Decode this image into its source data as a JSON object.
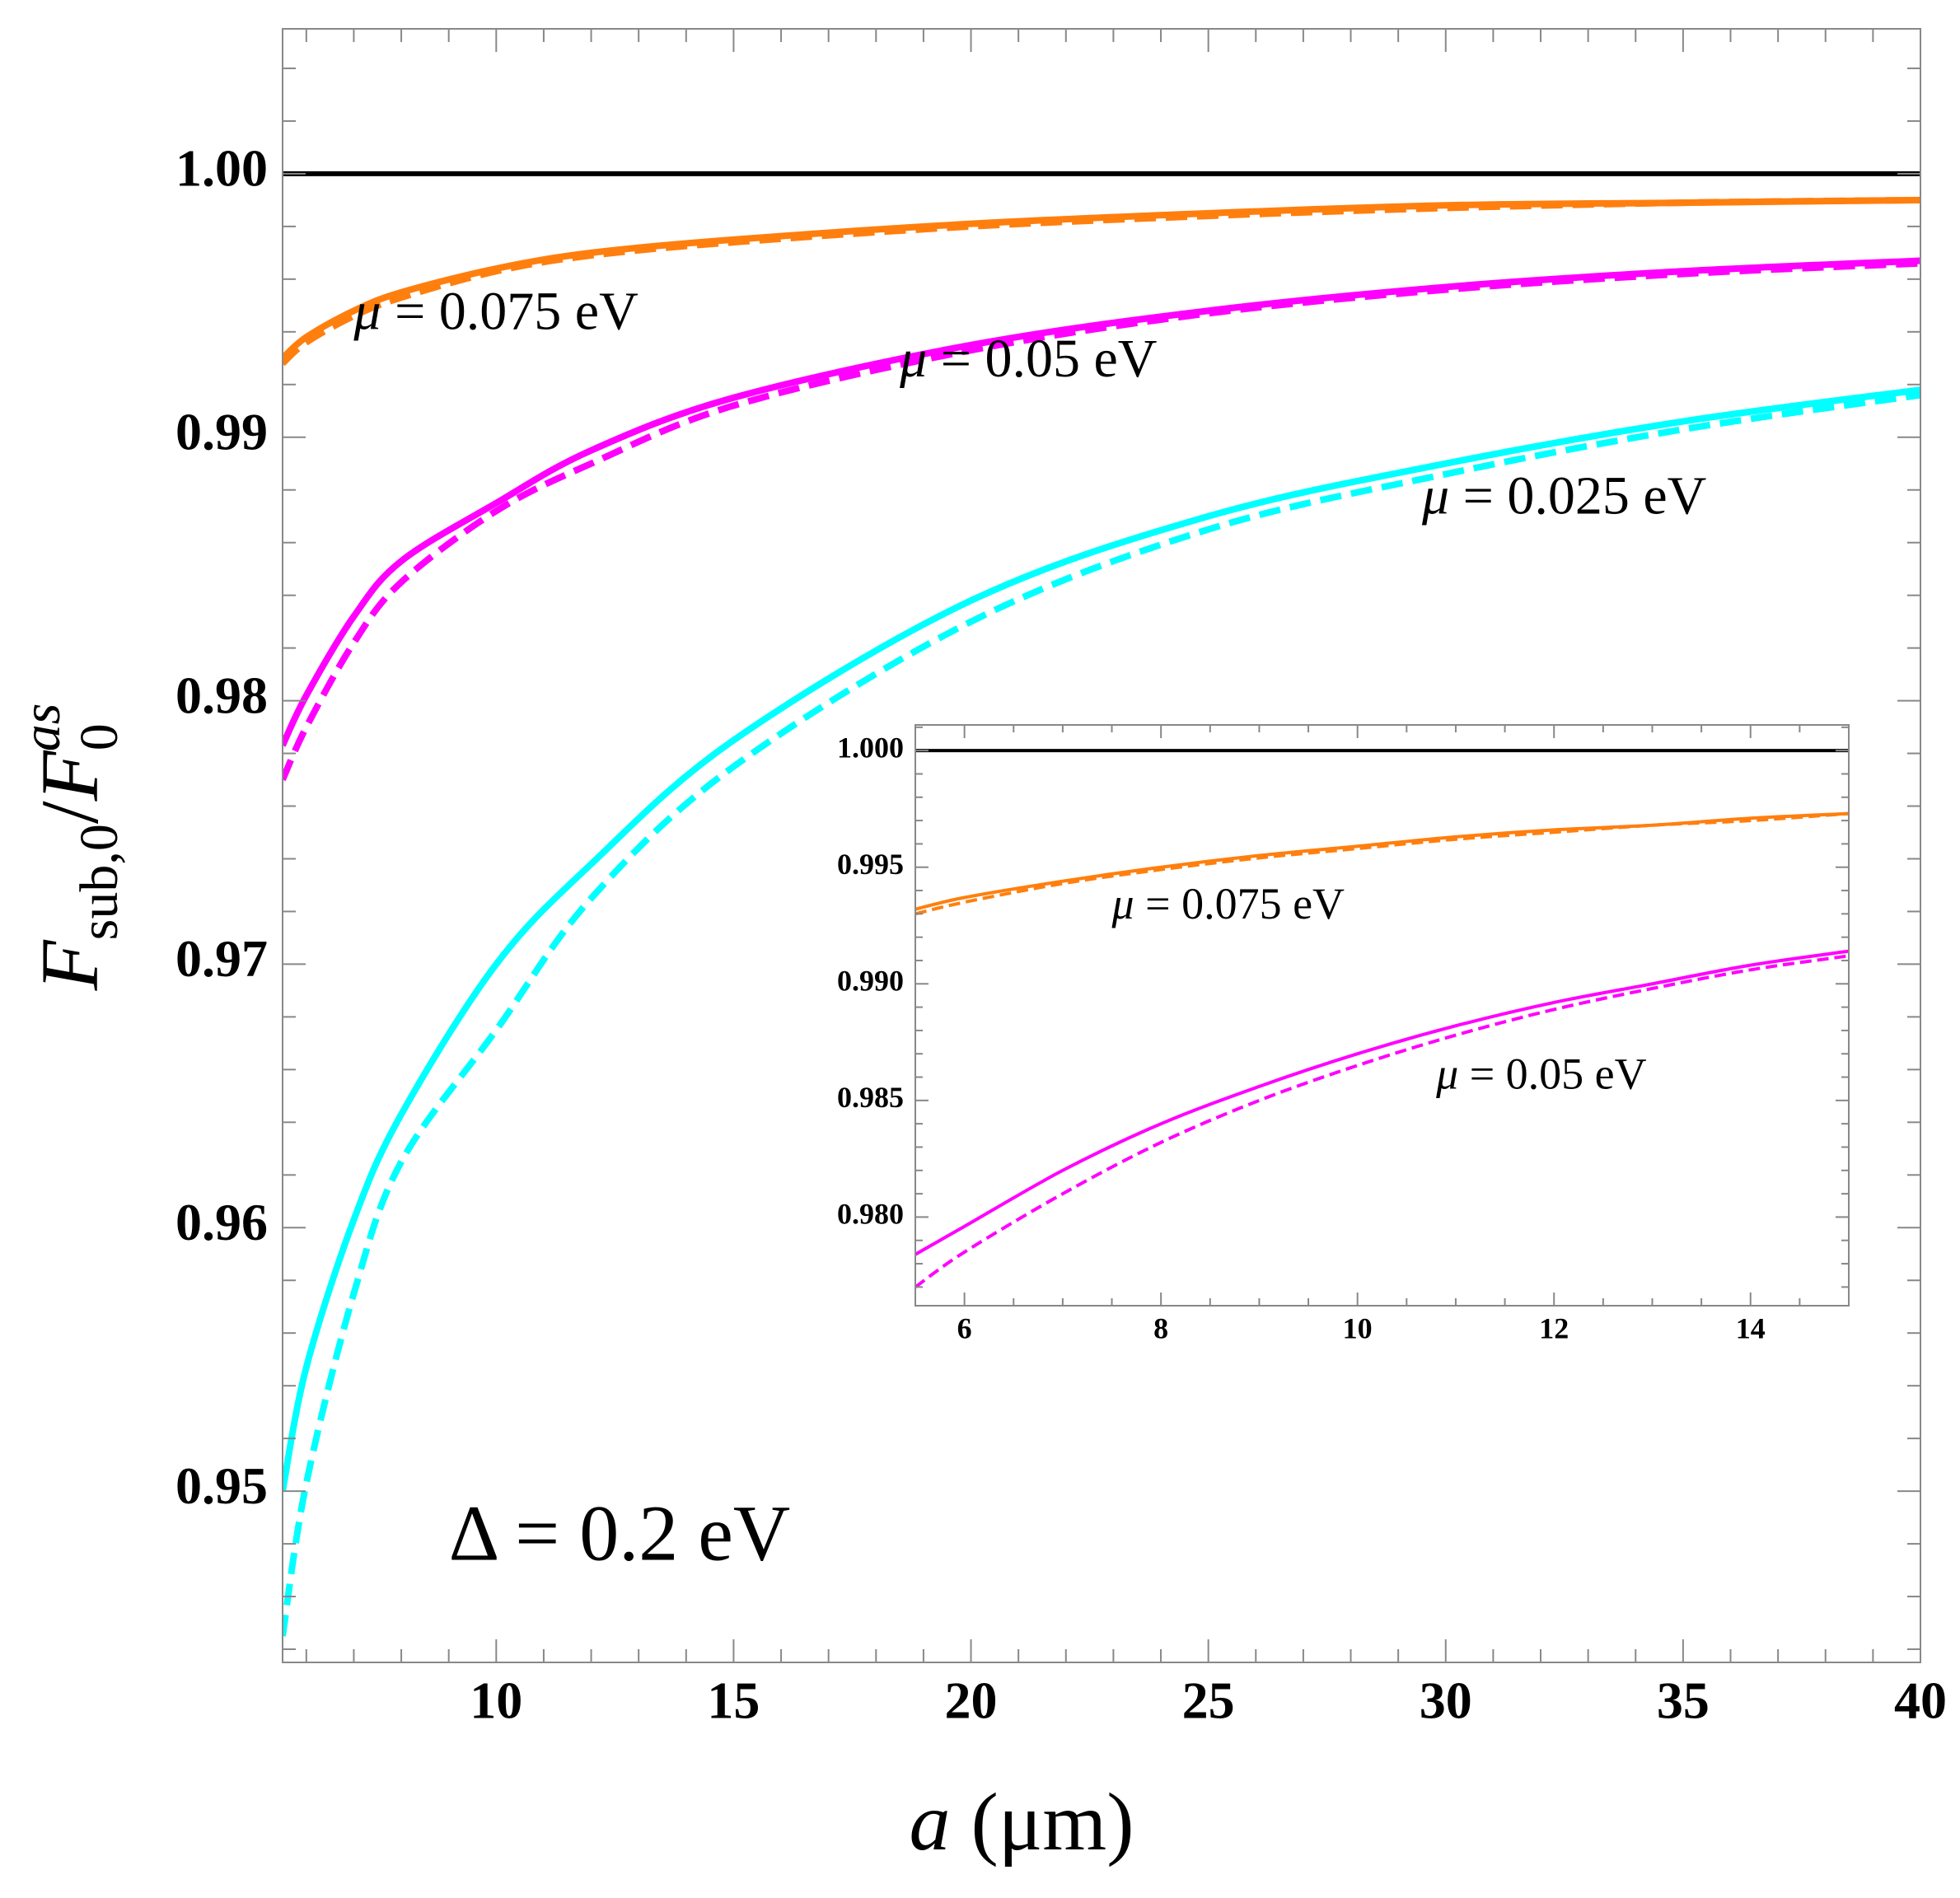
{
  "chart_data": [
    {
      "id": "main",
      "type": "line",
      "xlabel": "a (μm)",
      "ylabel": "F_sub,0 / F_0^as",
      "xlim": [
        5.5,
        40
      ],
      "ylim": [
        0.9435,
        1.0055
      ],
      "x_ticks": [
        10,
        15,
        20,
        25,
        30,
        35,
        40
      ],
      "x_tick_labels": [
        "10",
        "15",
        "20",
        "25",
        "30",
        "35",
        "40"
      ],
      "y_ticks": [
        0.95,
        0.96,
        0.97,
        0.98,
        0.99,
        1.0
      ],
      "y_tick_labels": [
        "0.95",
        "0.96",
        "0.97",
        "0.98",
        "0.99",
        "1.00"
      ],
      "annotation": "Δ = 0.2 eV",
      "series": [
        {
          "name": "reference",
          "color": "#000000",
          "style": "solid",
          "x": [
            5.5,
            40
          ],
          "y": [
            1.0,
            1.0
          ]
        },
        {
          "name": "μ = 0.075 eV solid",
          "label": "μ = 0.075 eV",
          "color": "#ff7f0e",
          "style": "solid",
          "x": [
            5.5,
            6,
            7,
            8,
            10,
            12,
            15,
            20,
            25,
            30,
            35,
            40
          ],
          "y": [
            0.993,
            0.9938,
            0.9948,
            0.9955,
            0.9964,
            0.997,
            0.9975,
            0.9981,
            0.9985,
            0.9988,
            0.9989,
            0.999
          ]
        },
        {
          "name": "μ = 0.075 eV dashed",
          "color": "#ff7f0e",
          "style": "dashed",
          "x": [
            5.5,
            6,
            7,
            8,
            10,
            12,
            15,
            20,
            25,
            30,
            35,
            40
          ],
          "y": [
            0.9928,
            0.9936,
            0.9946,
            0.9953,
            0.9963,
            0.9969,
            0.9974,
            0.998,
            0.9984,
            0.9987,
            0.9989,
            0.999
          ]
        },
        {
          "name": "μ = 0.05 eV solid",
          "label": "μ = 0.05 eV",
          "color": "#ff00ff",
          "style": "solid",
          "x": [
            5.5,
            6,
            7,
            8,
            10,
            12,
            15,
            20,
            25,
            30,
            35,
            40
          ],
          "y": [
            0.9783,
            0.9802,
            0.9832,
            0.9853,
            0.9875,
            0.9895,
            0.9915,
            0.9935,
            0.9948,
            0.9957,
            0.9963,
            0.9967
          ]
        },
        {
          "name": "μ = 0.05 eV dashed",
          "color": "#ff00ff",
          "style": "dashed",
          "x": [
            5.5,
            6,
            7,
            8,
            10,
            12,
            15,
            20,
            25,
            30,
            35,
            40
          ],
          "y": [
            0.977,
            0.979,
            0.9822,
            0.9845,
            0.9872,
            0.989,
            0.9912,
            0.9933,
            0.9947,
            0.9956,
            0.9962,
            0.9966
          ]
        },
        {
          "name": "μ = 0.025 eV solid",
          "label": "μ = 0.025 eV",
          "color": "#00ffff",
          "style": "solid",
          "x": [
            5.5,
            6,
            7,
            8,
            10,
            12,
            15,
            20,
            25,
            30,
            35,
            40
          ],
          "y": [
            0.95,
            0.9547,
            0.9603,
            0.9643,
            0.97,
            0.9738,
            0.9785,
            0.9838,
            0.987,
            0.989,
            0.9906,
            0.9918
          ]
        },
        {
          "name": "μ = 0.025 eV dashed",
          "color": "#00ffff",
          "style": "dashed",
          "x": [
            5.5,
            6,
            7,
            8,
            10,
            12,
            15,
            20,
            25,
            30,
            35,
            40
          ],
          "y": [
            0.9445,
            0.9503,
            0.9575,
            0.9625,
            0.9675,
            0.9725,
            0.9775,
            0.983,
            0.9865,
            0.9886,
            0.9903,
            0.9916
          ]
        }
      ],
      "labels": [
        {
          "text_pre": "μ",
          "text_post": " = 0.075 eV",
          "at": [
            7.0,
            0.9941
          ]
        },
        {
          "text_pre": "μ",
          "text_post": " = 0.05 eV",
          "at": [
            18.5,
            0.9923
          ]
        },
        {
          "text_pre": "μ",
          "text_post": " = 0.025 eV",
          "at": [
            29.5,
            0.9871
          ]
        }
      ]
    },
    {
      "id": "inset",
      "type": "line",
      "xlim": [
        5.5,
        15
      ],
      "ylim": [
        0.9762,
        1.0011
      ],
      "x_ticks": [
        6,
        8,
        10,
        12,
        14
      ],
      "x_tick_labels": [
        "6",
        "8",
        "10",
        "12",
        "14"
      ],
      "y_ticks": [
        0.98,
        0.985,
        0.99,
        0.995,
        1.0
      ],
      "y_tick_labels": [
        "0.980",
        "0.985",
        "0.990",
        "0.995",
        "1.000"
      ],
      "series": [
        {
          "name": "reference",
          "color": "#000000",
          "style": "solid",
          "x": [
            5.5,
            15
          ],
          "y": [
            1.0,
            1.0
          ]
        },
        {
          "name": "μ = 0.075 eV solid",
          "color": "#ff7f0e",
          "style": "solid",
          "x": [
            5.5,
            6,
            7,
            8,
            9,
            10,
            11,
            12,
            13,
            14,
            15
          ],
          "y": [
            0.9932,
            0.9937,
            0.9944,
            0.995,
            0.9955,
            0.9959,
            0.9963,
            0.9966,
            0.9968,
            0.9971,
            0.9973
          ]
        },
        {
          "name": "μ = 0.075 eV dashed",
          "color": "#ff7f0e",
          "style": "dashed",
          "x": [
            5.5,
            6,
            7,
            8,
            9,
            10,
            11,
            12,
            13,
            14,
            15
          ],
          "y": [
            0.993,
            0.9935,
            0.9943,
            0.9949,
            0.9954,
            0.9958,
            0.9962,
            0.9965,
            0.9968,
            0.997,
            0.9973
          ]
        },
        {
          "name": "μ = 0.05 eV solid",
          "color": "#ff00ff",
          "style": "solid",
          "x": [
            5.5,
            6,
            7,
            8,
            9,
            10,
            11,
            12,
            13,
            14,
            15
          ],
          "y": [
            0.9784,
            0.9796,
            0.982,
            0.984,
            0.9856,
            0.987,
            0.9882,
            0.9892,
            0.99,
            0.9908,
            0.9914
          ]
        },
        {
          "name": "μ = 0.05 eV dashed",
          "color": "#ff00ff",
          "style": "dashed",
          "x": [
            5.5,
            6,
            7,
            8,
            9,
            10,
            11,
            12,
            13,
            14,
            15
          ],
          "y": [
            0.977,
            0.9785,
            0.981,
            0.9832,
            0.985,
            0.9865,
            0.9878,
            0.9889,
            0.9898,
            0.9906,
            0.9912
          ]
        }
      ],
      "labels": [
        {
          "text_pre": "μ",
          "text_post": " = 0.075 eV",
          "at": [
            7.5,
            0.9928
          ]
        },
        {
          "text_pre": "μ",
          "text_post": " = 0.05 eV",
          "at": [
            10.8,
            0.9855
          ]
        }
      ]
    }
  ]
}
